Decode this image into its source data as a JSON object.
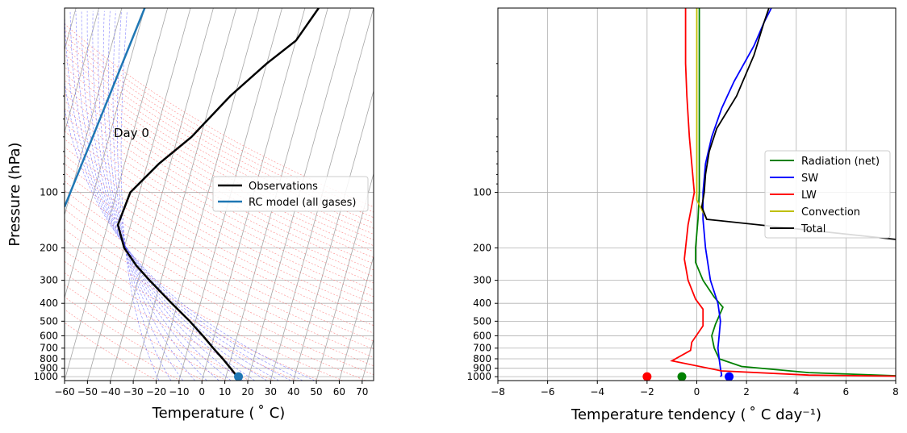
{
  "chart_data": [
    {
      "type": "line",
      "subtype": "skew-T log-p diagram",
      "xlabel": "Temperature ( ˚ C)",
      "ylabel": "Pressure (hPa)",
      "xlim": [
        -60,
        75
      ],
      "xticks": [
        -60,
        -50,
        -40,
        -30,
        -20,
        -10,
        0,
        10,
        20,
        30,
        40,
        50,
        60,
        70
      ],
      "ylim": [
        1050,
        10
      ],
      "yscale": "log",
      "yticks": [
        100,
        200,
        300,
        400,
        500,
        600,
        700,
        800,
        900,
        1000
      ],
      "annotation": "Day 0",
      "legend_position": "center-right",
      "series": [
        {
          "name": "Observations",
          "color": "#000000",
          "points": [
            [
              15,
              1000
            ],
            [
              11,
              900
            ],
            [
              6.5,
              800
            ],
            [
              1,
              700
            ],
            [
              -5,
              600
            ],
            [
              -12.5,
              500
            ],
            [
              -22.5,
              400
            ],
            [
              -35,
              300
            ],
            [
              -42.5,
              250
            ],
            [
              -50,
              200
            ],
            [
              -55.5,
              150
            ],
            [
              -54,
              100
            ],
            [
              -45,
              70
            ],
            [
              -34,
              50
            ],
            [
              -22,
              30
            ],
            [
              -10,
              20
            ],
            [
              0,
              15
            ],
            [
              6,
              10
            ]
          ]
        },
        {
          "name": "RC model (all gases)",
          "color": "#1f77b4",
          "points": [
            [
              -81,
              120
            ],
            [
              -70,
              10
            ]
          ]
        }
      ],
      "markers": [
        {
          "name": "surface",
          "x": 15.5,
          "y": 1000,
          "color": "#1f77b4"
        }
      ],
      "background_lines": {
        "isotherms_color": "#a6a6a6",
        "dry_adiabats_color": "#ff6b6b",
        "moist_adiabats_color": "#4d4dff"
      }
    },
    {
      "type": "line",
      "xlabel": "Temperature tendency ( ˚ C day⁻¹)",
      "xlim": [
        -8,
        8
      ],
      "xticks": [
        -8,
        -6,
        -4,
        -2,
        0,
        2,
        4,
        6,
        8
      ],
      "ylim": [
        1050,
        10
      ],
      "yscale": "log",
      "yticks": [
        100,
        200,
        300,
        400,
        500,
        600,
        700,
        800,
        900,
        1000
      ],
      "grid": true,
      "legend_position": "center-right",
      "series": [
        {
          "name": "Radiation (net)",
          "color": "#008000",
          "points": [
            [
              8,
              988
            ],
            [
              4.5,
              950
            ],
            [
              1.8,
              880
            ],
            [
              0.9,
              800
            ],
            [
              0.7,
              700
            ],
            [
              0.6,
              600
            ],
            [
              0.75,
              520
            ],
            [
              1.05,
              420
            ],
            [
              0.7,
              370
            ],
            [
              0.25,
              300
            ],
            [
              -0.05,
              240
            ],
            [
              -0.05,
              200
            ],
            [
              0.05,
              140
            ],
            [
              0.1,
              100
            ],
            [
              0.1,
              10
            ]
          ]
        },
        {
          "name": "SW",
          "color": "#0000ff",
          "points": [
            [
              0.95,
              1000
            ],
            [
              1.0,
              980
            ],
            [
              0.95,
              900
            ],
            [
              0.9,
              800
            ],
            [
              0.85,
              700
            ],
            [
              0.9,
              600
            ],
            [
              0.95,
              500
            ],
            [
              0.85,
              400
            ],
            [
              0.55,
              300
            ],
            [
              0.35,
              200
            ],
            [
              0.25,
              140
            ],
            [
              0.25,
              100
            ],
            [
              0.35,
              70
            ],
            [
              0.6,
              50
            ],
            [
              1.0,
              35
            ],
            [
              1.5,
              25
            ],
            [
              2.3,
              16
            ],
            [
              2.7,
              12
            ],
            [
              3.0,
              10
            ]
          ]
        },
        {
          "name": "LW",
          "color": "#ff0000",
          "points": [
            [
              8,
              993
            ],
            [
              4.5,
              980
            ],
            [
              1,
              930
            ],
            [
              -1.0,
              820
            ],
            [
              -0.25,
              720
            ],
            [
              -0.2,
              650
            ],
            [
              0.25,
              530
            ],
            [
              0.25,
              430
            ],
            [
              -0.05,
              380
            ],
            [
              -0.35,
              300
            ],
            [
              -0.5,
              230
            ],
            [
              -0.35,
              150
            ],
            [
              -0.1,
              100
            ],
            [
              -0.3,
              50
            ],
            [
              -0.4,
              30
            ],
            [
              -0.45,
              20
            ],
            [
              -0.45,
              10
            ]
          ]
        },
        {
          "name": "Convection",
          "color": "#bfbf00",
          "points": [
            [
              0,
              10
            ],
            [
              0,
              110
            ],
            [
              0.4,
              140
            ]
          ]
        },
        {
          "name": "Total",
          "color": "#000000",
          "points": [
            [
              8,
              180
            ],
            [
              0.4,
              140
            ],
            [
              0.2,
              120
            ],
            [
              0.3,
              100
            ],
            [
              0.35,
              80
            ],
            [
              0.5,
              60
            ],
            [
              0.8,
              45
            ],
            [
              1.6,
              30
            ],
            [
              2.3,
              18
            ],
            [
              2.7,
              12
            ],
            [
              2.9,
              10
            ]
          ]
        }
      ],
      "markers": [
        {
          "name": "LW surface",
          "x": -2,
          "y": 1000,
          "color": "#ff0000"
        },
        {
          "name": "Radiation surface",
          "x": -0.6,
          "y": 1000,
          "color": "#008000"
        },
        {
          "name": "SW surface",
          "x": 1.3,
          "y": 1000,
          "color": "#0000ff"
        }
      ]
    }
  ]
}
